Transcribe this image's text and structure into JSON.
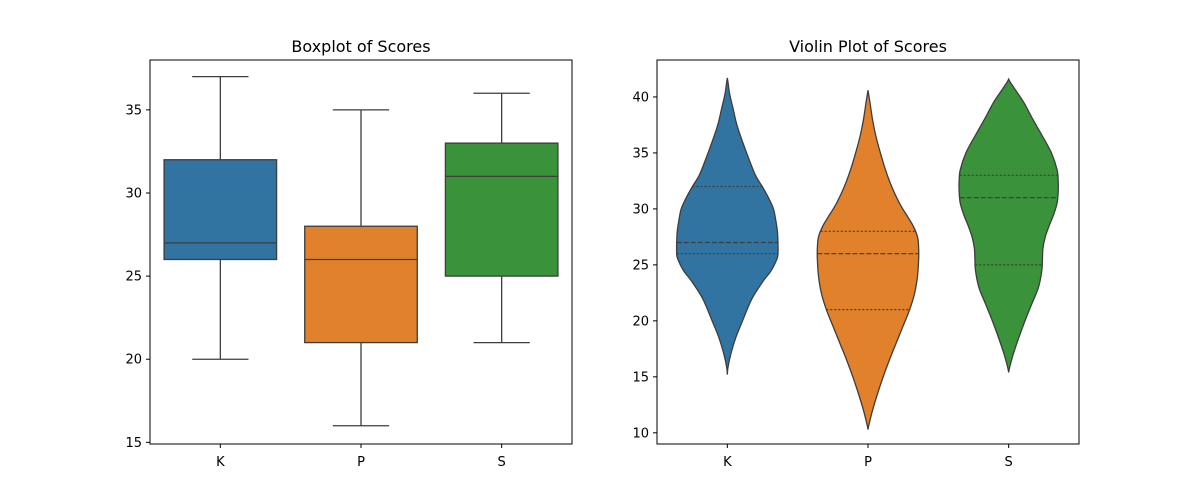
{
  "figure": {
    "charts": [
      {
        "type": "box",
        "title": "Boxplot of Scores",
        "categories": [
          "K",
          "P",
          "S"
        ],
        "colors": [
          "#3274a1",
          "#e1812c",
          "#3a923a"
        ],
        "boxes": [
          {
            "category": "K",
            "whisker_low": 20,
            "q1": 26,
            "median": 27,
            "q3": 32,
            "whisker_high": 37
          },
          {
            "category": "P",
            "whisker_low": 16,
            "q1": 21,
            "median": 26,
            "q3": 28,
            "whisker_high": 35
          },
          {
            "category": "S",
            "whisker_low": 21,
            "q1": 25,
            "median": 31,
            "q3": 33,
            "whisker_high": 36
          }
        ],
        "ylim": [
          14.9,
          38.0
        ],
        "yticks": [
          15,
          20,
          25,
          30,
          35
        ],
        "xlabel": "",
        "ylabel": "",
        "grid": false
      },
      {
        "type": "violin",
        "title": "Violin Plot of Scores",
        "categories": [
          "K",
          "P",
          "S"
        ],
        "colors": [
          "#3274a1",
          "#e1812c",
          "#3a923a"
        ],
        "inner": "quartile",
        "violins": [
          {
            "category": "K",
            "q1": 26,
            "median": 27,
            "q3": 32,
            "profile": [
              [
                15.2,
                0.0
              ],
              [
                15.8,
                0.01
              ],
              [
                17,
                0.06
              ],
              [
                18.5,
                0.15
              ],
              [
                20,
                0.27
              ],
              [
                22,
                0.44
              ],
              [
                23.5,
                0.63
              ],
              [
                24.5,
                0.78
              ],
              [
                25.5,
                0.88
              ],
              [
                26,
                0.9
              ],
              [
                27,
                0.9
              ],
              [
                28,
                0.89
              ],
              [
                29,
                0.86
              ],
              [
                30,
                0.82
              ],
              [
                31,
                0.73
              ],
              [
                32,
                0.62
              ],
              [
                33,
                0.5
              ],
              [
                34.5,
                0.38
              ],
              [
                36,
                0.27
              ],
              [
                37.5,
                0.17
              ],
              [
                39,
                0.1
              ],
              [
                40.3,
                0.04
              ],
              [
                41.2,
                0.015
              ],
              [
                41.7,
                0.0
              ]
            ]
          },
          {
            "category": "P",
            "q1": 21,
            "median": 26,
            "q3": 28,
            "profile": [
              [
                10.3,
                0.0
              ],
              [
                10.8,
                0.02
              ],
              [
                12,
                0.08
              ],
              [
                13.5,
                0.17
              ],
              [
                15,
                0.27
              ],
              [
                16.5,
                0.38
              ],
              [
                18,
                0.5
              ],
              [
                19.5,
                0.62
              ],
              [
                21,
                0.74
              ],
              [
                22.5,
                0.83
              ],
              [
                24,
                0.88
              ],
              [
                25.5,
                0.9
              ],
              [
                26.5,
                0.9
              ],
              [
                27.5,
                0.88
              ],
              [
                28.5,
                0.8
              ],
              [
                29.5,
                0.68
              ],
              [
                30.5,
                0.56
              ],
              [
                32,
                0.42
              ],
              [
                33.5,
                0.31
              ],
              [
                35,
                0.22
              ],
              [
                36.5,
                0.14
              ],
              [
                38,
                0.08
              ],
              [
                39.5,
                0.035
              ],
              [
                40.6,
                0.0
              ]
            ]
          },
          {
            "category": "S",
            "q1": 25,
            "median": 31,
            "q3": 33,
            "profile": [
              [
                15.4,
                0.0
              ],
              [
                15.9,
                0.02
              ],
              [
                17,
                0.08
              ],
              [
                18.5,
                0.18
              ],
              [
                20,
                0.29
              ],
              [
                21.5,
                0.41
              ],
              [
                23,
                0.53
              ],
              [
                24.5,
                0.59
              ],
              [
                25.5,
                0.6
              ],
              [
                26.5,
                0.61
              ],
              [
                27.5,
                0.65
              ],
              [
                28.5,
                0.72
              ],
              [
                29.5,
                0.8
              ],
              [
                30.5,
                0.86
              ],
              [
                31.5,
                0.88
              ],
              [
                32.5,
                0.88
              ],
              [
                33.5,
                0.86
              ],
              [
                35,
                0.76
              ],
              [
                36.5,
                0.6
              ],
              [
                38,
                0.43
              ],
              [
                39.5,
                0.27
              ],
              [
                40.7,
                0.11
              ],
              [
                41.3,
                0.03
              ],
              [
                41.6,
                0.0
              ]
            ]
          }
        ],
        "ylim": [
          9.0,
          43.3
        ],
        "yticks": [
          10,
          15,
          20,
          25,
          30,
          35,
          40
        ],
        "xlabel": "",
        "ylabel": "",
        "grid": false
      }
    ]
  }
}
